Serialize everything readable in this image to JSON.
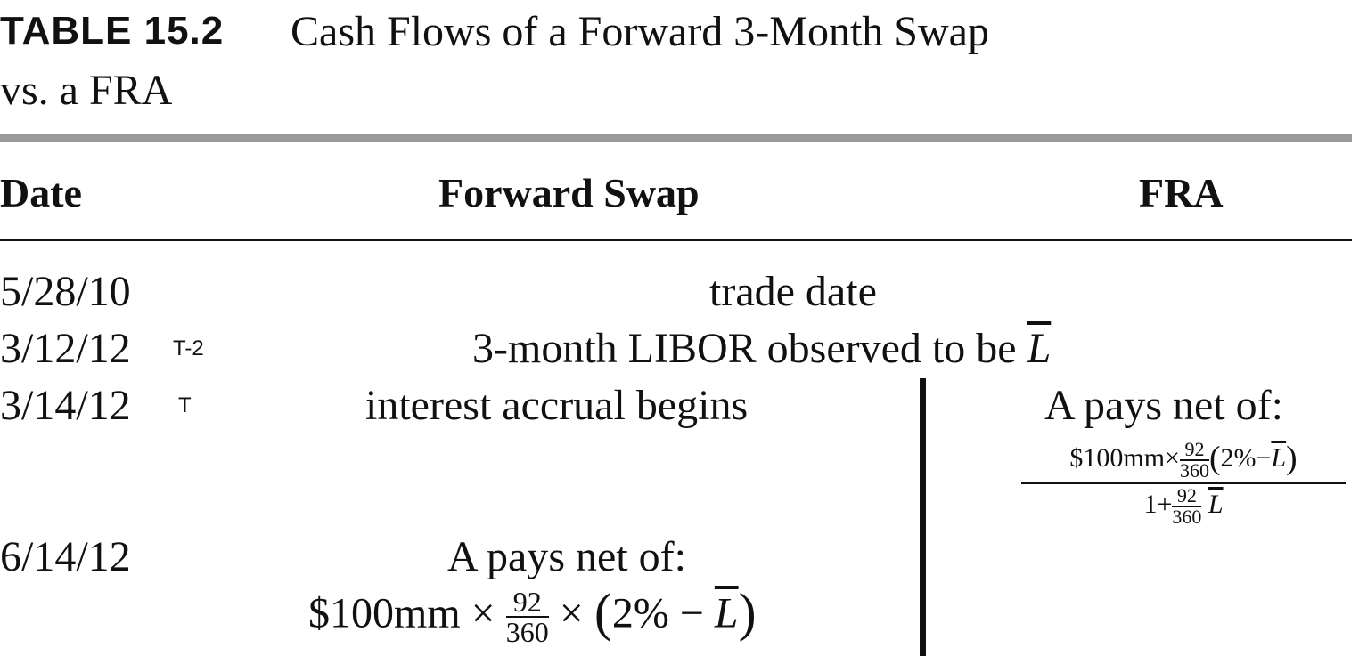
{
  "table": {
    "label": "TABLE 15.2",
    "title_line1": "Cash Flows of a Forward 3-Month Swap",
    "title_line2": "vs. a FRA"
  },
  "headers": {
    "date": "Date",
    "forward_swap": "Forward Swap",
    "fra": "FRA"
  },
  "rows": [
    {
      "date": "5/28/10",
      "tag": "",
      "shared_text": "trade date"
    },
    {
      "date": "3/12/12",
      "tag": "T-2",
      "shared_text": "3-month LIBOR observed to be",
      "shared_symbol": "L"
    },
    {
      "date": "3/14/12",
      "tag": "T",
      "swap_text": "interest accrual begins",
      "fra_text": "A pays net of:"
    },
    {
      "date": "6/14/12",
      "tag": "",
      "swap_text": "A pays net of:"
    }
  ],
  "fra_formula": {
    "numerator_prefix": "$100mm×",
    "frac_num": "92",
    "frac_den": "360",
    "paren_open": "(",
    "paren_close": ")",
    "rate": "2%−",
    "symbol": "L",
    "denominator_prefix": "1+",
    "denominator_frac_num": "92",
    "denominator_frac_den": "360",
    "denominator_symbol": "L"
  },
  "swap_formula": {
    "prefix": "$100mm ×",
    "frac_num": "92",
    "frac_den": "360",
    "times": "×",
    "paren_open": "(",
    "paren_close": ")",
    "rate": "2% −",
    "symbol": "L"
  }
}
